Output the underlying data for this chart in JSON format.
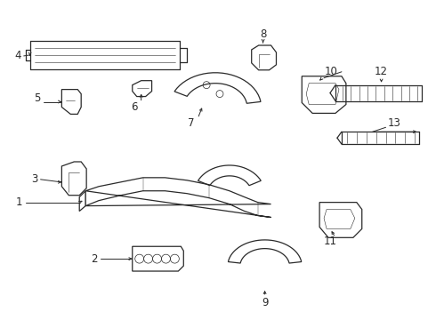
{
  "bg_color": "#ffffff",
  "fig_width": 4.9,
  "fig_height": 3.6,
  "dpi": 100,
  "line_color": "#2a2a2a",
  "label_fontsize": 8.5,
  "label_color": "#111111"
}
